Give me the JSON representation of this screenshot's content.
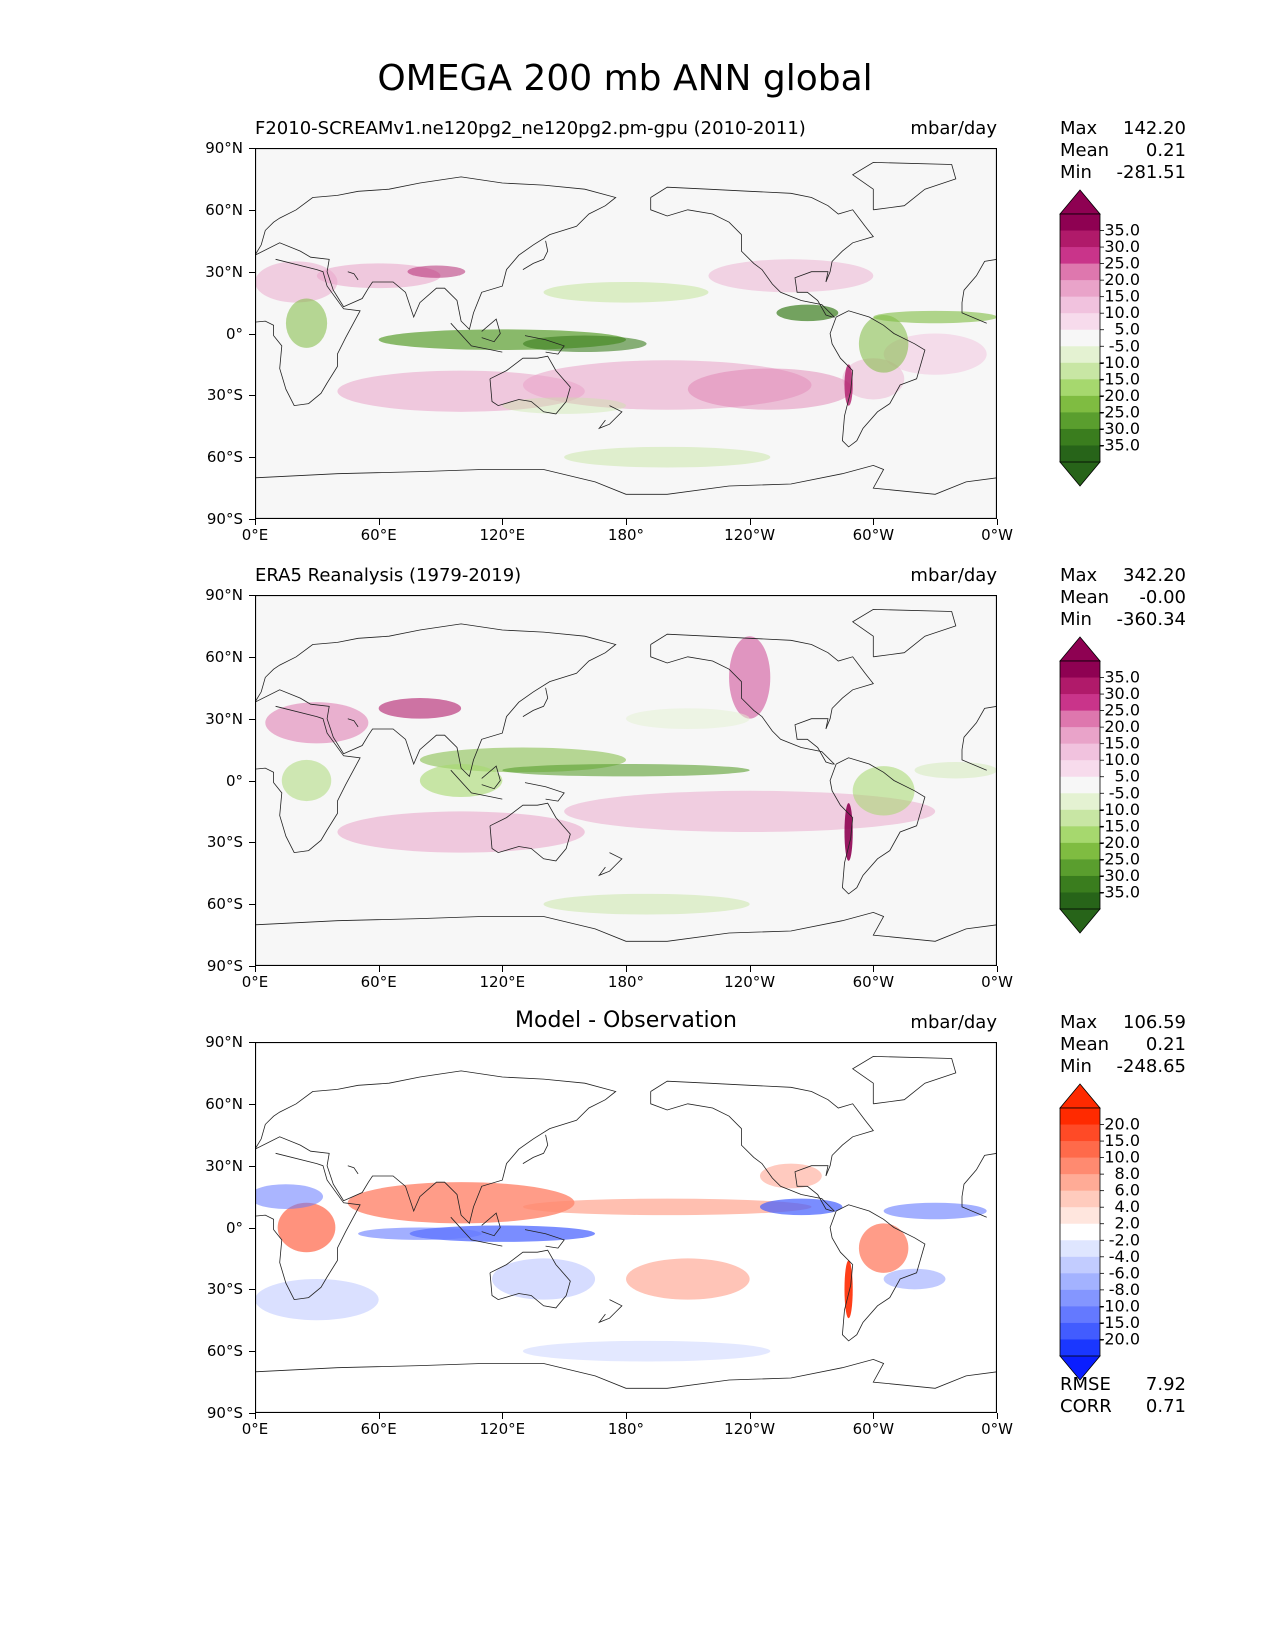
{
  "suptitle": "OMEGA 200 mb ANN global",
  "units": "mbar/day",
  "lat_ticks": [
    "90°N",
    "60°N",
    "30°N",
    "0°",
    "30°S",
    "60°S",
    "90°S"
  ],
  "lon_ticks": [
    "0°E",
    "60°E",
    "120°E",
    "180°",
    "120°W",
    "60°W",
    "0°W"
  ],
  "stat_labels": {
    "max": "Max",
    "mean": "Mean",
    "min": "Min"
  },
  "panels": [
    {
      "title_left": "F2010-SCREAMv1.ne120pg2_ne120pg2.pm-gpu (2010-2011)",
      "title_center": "",
      "units": "mbar/day",
      "stats": {
        "max": "142.20",
        "mean": "0.21",
        "min": "-281.51"
      },
      "colorbar": {
        "labels": [
          "35.0",
          "30.0",
          "25.0",
          "20.0",
          "15.0",
          "10.0",
          "5.0",
          "-5.0",
          "-10.0",
          "-15.0",
          "-20.0",
          "-25.0",
          "-30.0",
          "-35.0"
        ],
        "colors": [
          "#8e0152",
          "#b01a6a",
          "#c9348a",
          "#de77ae",
          "#e9a3c9",
          "#f1c2de",
          "#f7dbec",
          "#f7f7f7",
          "#e4f2d2",
          "#c8e6a4",
          "#a6d86e",
          "#7fbc41",
          "#5a9e2e",
          "#3a7d1e",
          "#276419"
        ],
        "top_color": "#8e0152",
        "bottom_color": "#276419"
      }
    },
    {
      "title_left": "ERA5 Reanalysis (1979-2019)",
      "title_center": "",
      "units": "mbar/day",
      "stats": {
        "max": "342.20",
        "mean": "-0.00",
        "min": "-360.34"
      },
      "colorbar": {
        "labels": [
          "35.0",
          "30.0",
          "25.0",
          "20.0",
          "15.0",
          "10.0",
          "5.0",
          "-5.0",
          "-10.0",
          "-15.0",
          "-20.0",
          "-25.0",
          "-30.0",
          "-35.0"
        ],
        "colors": [
          "#8e0152",
          "#b01a6a",
          "#c9348a",
          "#de77ae",
          "#e9a3c9",
          "#f1c2de",
          "#f7dbec",
          "#f7f7f7",
          "#e4f2d2",
          "#c8e6a4",
          "#a6d86e",
          "#7fbc41",
          "#5a9e2e",
          "#3a7d1e",
          "#276419"
        ],
        "top_color": "#8e0152",
        "bottom_color": "#276419"
      }
    },
    {
      "title_left": "",
      "title_center": "Model - Observation",
      "units": "mbar/day",
      "stats": {
        "max": "106.59",
        "mean": "0.21",
        "min": "-248.65"
      },
      "colorbar": {
        "labels": [
          "20.0",
          "15.0",
          "10.0",
          "8.0",
          "6.0",
          "4.0",
          "2.0",
          "-2.0",
          "-4.0",
          "-6.0",
          "-8.0",
          "-10.0",
          "-15.0",
          "-20.0"
        ],
        "colors": [
          "#ff2a00",
          "#ff4a26",
          "#ff6a4a",
          "#ff8a70",
          "#ffab96",
          "#ffcbbd",
          "#ffe6de",
          "#ffffff",
          "#dfe6ff",
          "#c2ccff",
          "#a3b2ff",
          "#8496ff",
          "#6479ff",
          "#425cff",
          "#1a37ff"
        ],
        "top_color": "#ff2a00",
        "bottom_color": "#0a1eff"
      },
      "metrics": {
        "rmse_label": "RMSE",
        "rmse": "7.92",
        "corr_label": "CORR",
        "corr": "0.71"
      }
    }
  ],
  "chart_data": [
    {
      "type": "heatmap",
      "title": "F2010-SCREAMv1.ne120pg2_ne120pg2.pm-gpu (2010-2011)",
      "variable": "OMEGA 200 mb ANN",
      "units": "mbar/day",
      "xlim": [
        0,
        360
      ],
      "ylim": [
        -90,
        90
      ],
      "levels": [
        -35,
        -30,
        -25,
        -20,
        -15,
        -10,
        -5,
        5,
        10,
        15,
        20,
        25,
        30,
        35
      ],
      "max": 142.2,
      "mean": 0.21,
      "min": -281.51
    },
    {
      "type": "heatmap",
      "title": "ERA5 Reanalysis (1979-2019)",
      "variable": "OMEGA 200 mb ANN",
      "units": "mbar/day",
      "xlim": [
        0,
        360
      ],
      "ylim": [
        -90,
        90
      ],
      "levels": [
        -35,
        -30,
        -25,
        -20,
        -15,
        -10,
        -5,
        5,
        10,
        15,
        20,
        25,
        30,
        35
      ],
      "max": 342.2,
      "mean": -0.0,
      "min": -360.34
    },
    {
      "type": "heatmap",
      "title": "Model - Observation",
      "variable": "OMEGA 200 mb ANN difference",
      "units": "mbar/day",
      "xlim": [
        0,
        360
      ],
      "ylim": [
        -90,
        90
      ],
      "levels": [
        -20,
        -15,
        -10,
        -8,
        -6,
        -4,
        -2,
        2,
        4,
        6,
        8,
        10,
        15,
        20
      ],
      "max": 106.59,
      "mean": 0.21,
      "min": -248.65,
      "rmse": 7.92,
      "corr": 0.71
    }
  ]
}
